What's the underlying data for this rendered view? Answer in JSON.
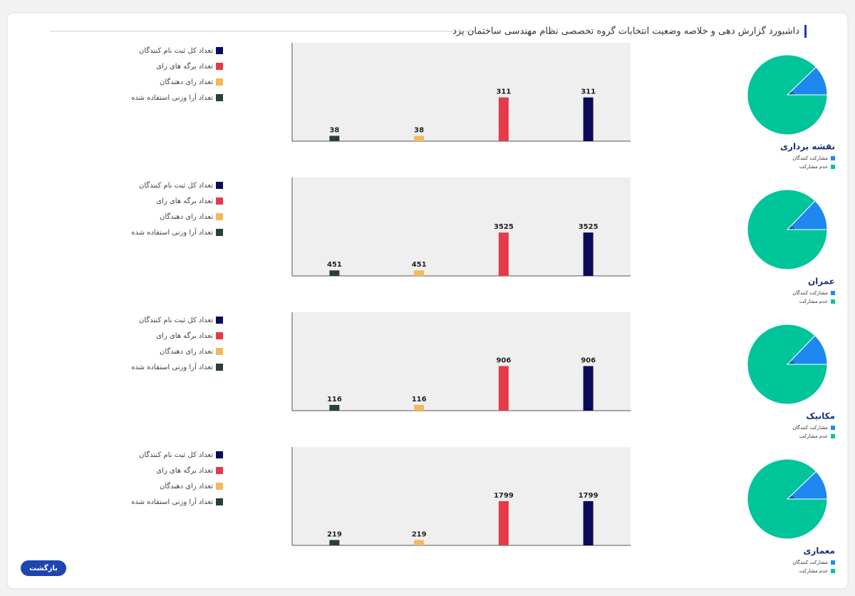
{
  "header": {
    "title": "داشبورد گزارش دهی و خلاصه وضعیت انتخابات گروه تخصصی نظام مهندسی ساختمان یزد"
  },
  "button": "بازگشت",
  "chart_data": [
    {
      "type": "pie",
      "title": "نقشه برداری",
      "categories": [
        "مشارکت کنندگان",
        "عدم مشارکت"
      ],
      "values": [
        12.22,
        87.78
      ],
      "value_labels": [
        "12.22 %",
        null
      ],
      "colors": [
        "#1e88f0",
        "#00c49a"
      ]
    },
    {
      "type": "bar",
      "ylim": [
        0,
        700
      ],
      "series": [
        {
          "name": "تعداد کل ثبت نام کنندگان",
          "color": "#0b0b5a",
          "values": [
            311
          ]
        },
        {
          "name": "تعداد برگه های رای",
          "color": "#e53a4a",
          "values": [
            311
          ]
        },
        {
          "name": "تعداد رای دهندگان",
          "color": "#f5b95a",
          "values": [
            38
          ]
        },
        {
          "name": "تعداد آرا وزنی استفاده شده",
          "color": "#28403a",
          "values": [
            38
          ]
        }
      ]
    },
    {
      "type": "pie",
      "title": "عمران",
      "categories": [
        "مشارکت کنندگان",
        "عدم مشارکت"
      ],
      "values": [
        12.79,
        87.21
      ],
      "value_labels": [
        "12.79 %",
        null
      ],
      "colors": [
        "#1e88f0",
        "#00c49a"
      ]
    },
    {
      "type": "bar",
      "ylim": [
        0,
        8000
      ],
      "series": [
        {
          "name": "تعداد کل ثبت نام کنندگان",
          "color": "#0b0b5a",
          "values": [
            3525
          ]
        },
        {
          "name": "تعداد برگه های رای",
          "color": "#e53a4a",
          "values": [
            3525
          ]
        },
        {
          "name": "تعداد رای دهندگان",
          "color": "#f5b95a",
          "values": [
            451
          ]
        },
        {
          "name": "تعداد آرا وزنی استفاده شده",
          "color": "#28403a",
          "values": [
            451
          ]
        }
      ]
    },
    {
      "type": "pie",
      "title": "مکانیک",
      "categories": [
        "مشارکت کنندگان",
        "عدم مشارکت"
      ],
      "values": [
        12.8,
        87.2
      ],
      "value_labels": [
        "12.80 %",
        null
      ],
      "colors": [
        "#1e88f0",
        "#00c49a"
      ]
    },
    {
      "type": "bar",
      "ylim": [
        0,
        2000
      ],
      "series": [
        {
          "name": "تعداد کل ثبت نام کنندگان",
          "color": "#0b0b5a",
          "values": [
            906
          ]
        },
        {
          "name": "تعداد برگه های رای",
          "color": "#e53a4a",
          "values": [
            906
          ]
        },
        {
          "name": "تعداد رای دهندگان",
          "color": "#f5b95a",
          "values": [
            116
          ]
        },
        {
          "name": "تعداد آرا وزنی استفاده شده",
          "color": "#28403a",
          "values": [
            116
          ]
        }
      ]
    },
    {
      "type": "pie",
      "title": "معماری",
      "categories": [
        "مشارکت کنندگان",
        "عدم مشارکت"
      ],
      "values": [
        12.17,
        87.83
      ],
      "value_labels": [
        "12.17 %",
        null
      ],
      "colors": [
        "#1e88f0",
        "#00c49a"
      ]
    },
    {
      "type": "bar",
      "ylim": [
        0,
        4000
      ],
      "series": [
        {
          "name": "تعداد کل ثبت نام کنندگان",
          "color": "#0b0b5a",
          "values": [
            1799
          ]
        },
        {
          "name": "تعداد برگه های رای",
          "color": "#e53a4a",
          "values": [
            1799
          ]
        },
        {
          "name": "تعداد رای دهندگان",
          "color": "#f5b95a",
          "values": [
            219
          ]
        },
        {
          "name": "تعداد آرا وزنی استفاده شده",
          "color": "#28403a",
          "values": [
            219
          ]
        }
      ]
    }
  ]
}
